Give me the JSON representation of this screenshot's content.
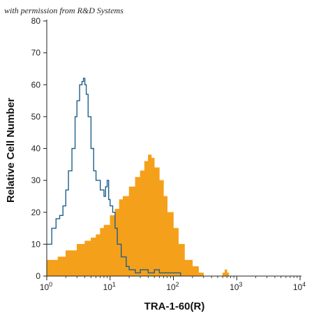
{
  "credit_line": "with permission from R&D Systems",
  "chart_data": {
    "type": "area",
    "title": "",
    "xlabel": "TRA-1-60(R)",
    "ylabel": "Relative Cell Number",
    "x_scale": "log",
    "xlim": [
      1,
      10000
    ],
    "ylim": [
      0,
      80
    ],
    "x_ticks": [
      {
        "value": 1,
        "base": "10",
        "exp": "0"
      },
      {
        "value": 10,
        "base": "10",
        "exp": "1"
      },
      {
        "value": 100,
        "base": "10",
        "exp": "2"
      },
      {
        "value": 1000,
        "base": "10",
        "exp": "3"
      },
      {
        "value": 10000,
        "base": "10",
        "exp": "4"
      }
    ],
    "y_ticks": [
      0,
      10,
      20,
      30,
      40,
      50,
      60,
      70,
      80
    ],
    "grid": false,
    "legend": "none",
    "series": [
      {
        "style": "outline",
        "color": "#1f5f8b",
        "x": [
          1.0,
          1.2,
          1.4,
          1.6,
          1.8,
          2.0,
          2.2,
          2.5,
          2.8,
          3.0,
          3.3,
          3.6,
          3.8,
          4.0,
          4.2,
          4.5,
          5.0,
          5.5,
          6.0,
          7.0,
          8.0,
          8.5,
          9.0,
          9.5,
          10.0,
          11.0,
          12.0,
          13.0,
          15.0,
          18.0,
          20.0,
          25.0,
          30.0,
          40.0,
          50.0,
          60.0,
          80.0,
          100.0,
          130.0
        ],
        "y": [
          10,
          15,
          18,
          19,
          22,
          27,
          33,
          40,
          50,
          55,
          60,
          61,
          62,
          60,
          57,
          50,
          40,
          33,
          30,
          27,
          25,
          28,
          30,
          24,
          22,
          20,
          15,
          10,
          6,
          3,
          2,
          1,
          2,
          1,
          2,
          1,
          1,
          1,
          0
        ]
      },
      {
        "style": "filled",
        "color": "#f5a01a",
        "x": [
          1.0,
          1.5,
          2.0,
          3.0,
          4.0,
          5.0,
          6.0,
          7.0,
          8.0,
          10.0,
          12.0,
          14.0,
          16.0,
          20.0,
          25.0,
          30.0,
          35.0,
          40.0,
          45.0,
          50.0,
          60.0,
          70.0,
          80.0,
          100.0,
          120.0,
          150.0,
          200.0,
          250.0,
          300.0,
          350.0,
          500.0,
          600.0,
          650.0,
          700.0,
          750.0
        ],
        "y": [
          5,
          6,
          8,
          10,
          11,
          12,
          13,
          15,
          16,
          19,
          21,
          24,
          25,
          28,
          31,
          33,
          36,
          38,
          37,
          34,
          30,
          25,
          20,
          15,
          10,
          5,
          3,
          1,
          0,
          0,
          0,
          1,
          2,
          1,
          0
        ]
      }
    ]
  }
}
